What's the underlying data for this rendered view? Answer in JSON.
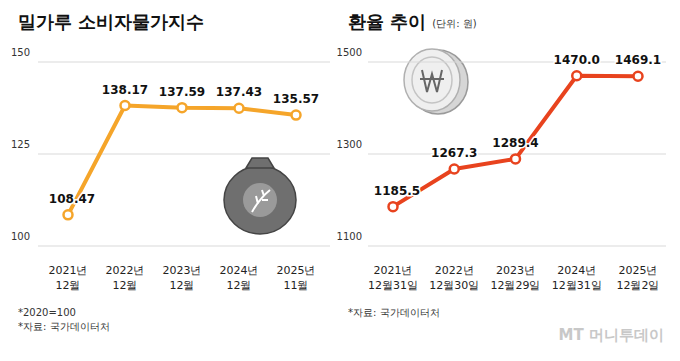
{
  "chart_data": [
    {
      "type": "line",
      "title": "밀가루 소비자물가지수",
      "categories": [
        "2021년 12월",
        "2022년 12월",
        "2023년 12월",
        "2024년 12월",
        "2025년 11월"
      ],
      "values": [
        108.47,
        138.17,
        137.59,
        137.43,
        135.57
      ],
      "color": "#f5a52a",
      "marker": "circle",
      "ylim": [
        100,
        150
      ],
      "yticks": [
        100,
        125,
        150
      ],
      "grid": true,
      "data_labels": true,
      "annotations": [
        "*2020=100",
        "*자료: 국가데이터처"
      ]
    },
    {
      "type": "line",
      "title": "환율 추이",
      "subtitle": "(단위: 원)",
      "categories": [
        "2021년 12월31일",
        "2022년 12월30일",
        "2023년 12월29일",
        "2024년 12월31일",
        "2025년 12월2일"
      ],
      "values": [
        1185.5,
        1267.3,
        1289.4,
        1470.0,
        1469.1
      ],
      "value_labels": [
        "1185.5",
        "1267.3",
        "1289.4",
        "1470.0",
        "1469.1"
      ],
      "color": "#e8431e",
      "marker": "circle",
      "ylim": [
        1100,
        1500
      ],
      "yticks": [
        1100,
        1300,
        1500
      ],
      "grid": true,
      "data_labels": true,
      "annotations": [
        "*자료: 국가데이터처"
      ]
    }
  ],
  "credit": "MT 머니투데이"
}
